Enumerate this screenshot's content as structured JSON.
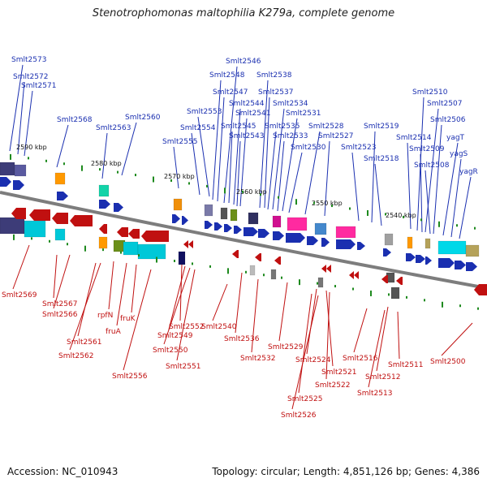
{
  "title": "Stenotrophomonas maltophilia K279a, complete genome",
  "footer": {
    "accession": "Accession: NC_010943",
    "topology": "Topology: circular; Length: 4,851,126 bp; Genes: 4,386"
  },
  "colors": {
    "positive_strand": "#1a2fb0",
    "negative_strand": "#c01010",
    "backbone": "#888888",
    "tick": "#1e8a1e"
  },
  "ticks": [
    "2590 kbp",
    "2580 kbp",
    "2570 kbp",
    "2560 kbp",
    "2550 kbp",
    "2540 kbp"
  ],
  "positive_labels": [
    "Smlt2573",
    "Smlt2572",
    "Smlt2571",
    "Smlt2568",
    "Smlt2563",
    "Smlt2560",
    "Smlt2555",
    "Smlt2554",
    "Smlt2553",
    "Smlt2548",
    "Smlt2547",
    "Smlt2546",
    "Smlt2545",
    "Smlt2544",
    "Smlt2543",
    "Smlt2541",
    "Smlt2538",
    "Smlt2537",
    "Smlt2535",
    "Smlt2534",
    "Smlt2533",
    "Smlt2531",
    "Smlt2530",
    "Smlt2528",
    "Smlt2527",
    "Smlt2523",
    "Smlt2519",
    "Smlt2518",
    "Smlt2514",
    "Smlt2510",
    "Smlt2509",
    "Smlt2508",
    "Smlt2507",
    "Smlt2506",
    "yagT",
    "yagS",
    "yagR"
  ],
  "negative_labels": [
    "Smlt2569",
    "Smlt2567",
    "Smlt2566",
    "Smlt2561",
    "Smlt2562",
    "rpfN",
    "fruA",
    "fruK",
    "Smlt2556",
    "Smlt2552",
    "Smlt2549",
    "Smlt2550",
    "Smlt2551",
    "Smlt2540",
    "Smlt2536",
    "Smlt2532",
    "Smlt2529",
    "Smlt2524",
    "Smlt2521",
    "Smlt2522",
    "Smlt2525",
    "Smlt2526",
    "Smlt2516",
    "Smlt2512",
    "Smlt2513",
    "Smlt2511",
    "Smlt2500"
  ]
}
